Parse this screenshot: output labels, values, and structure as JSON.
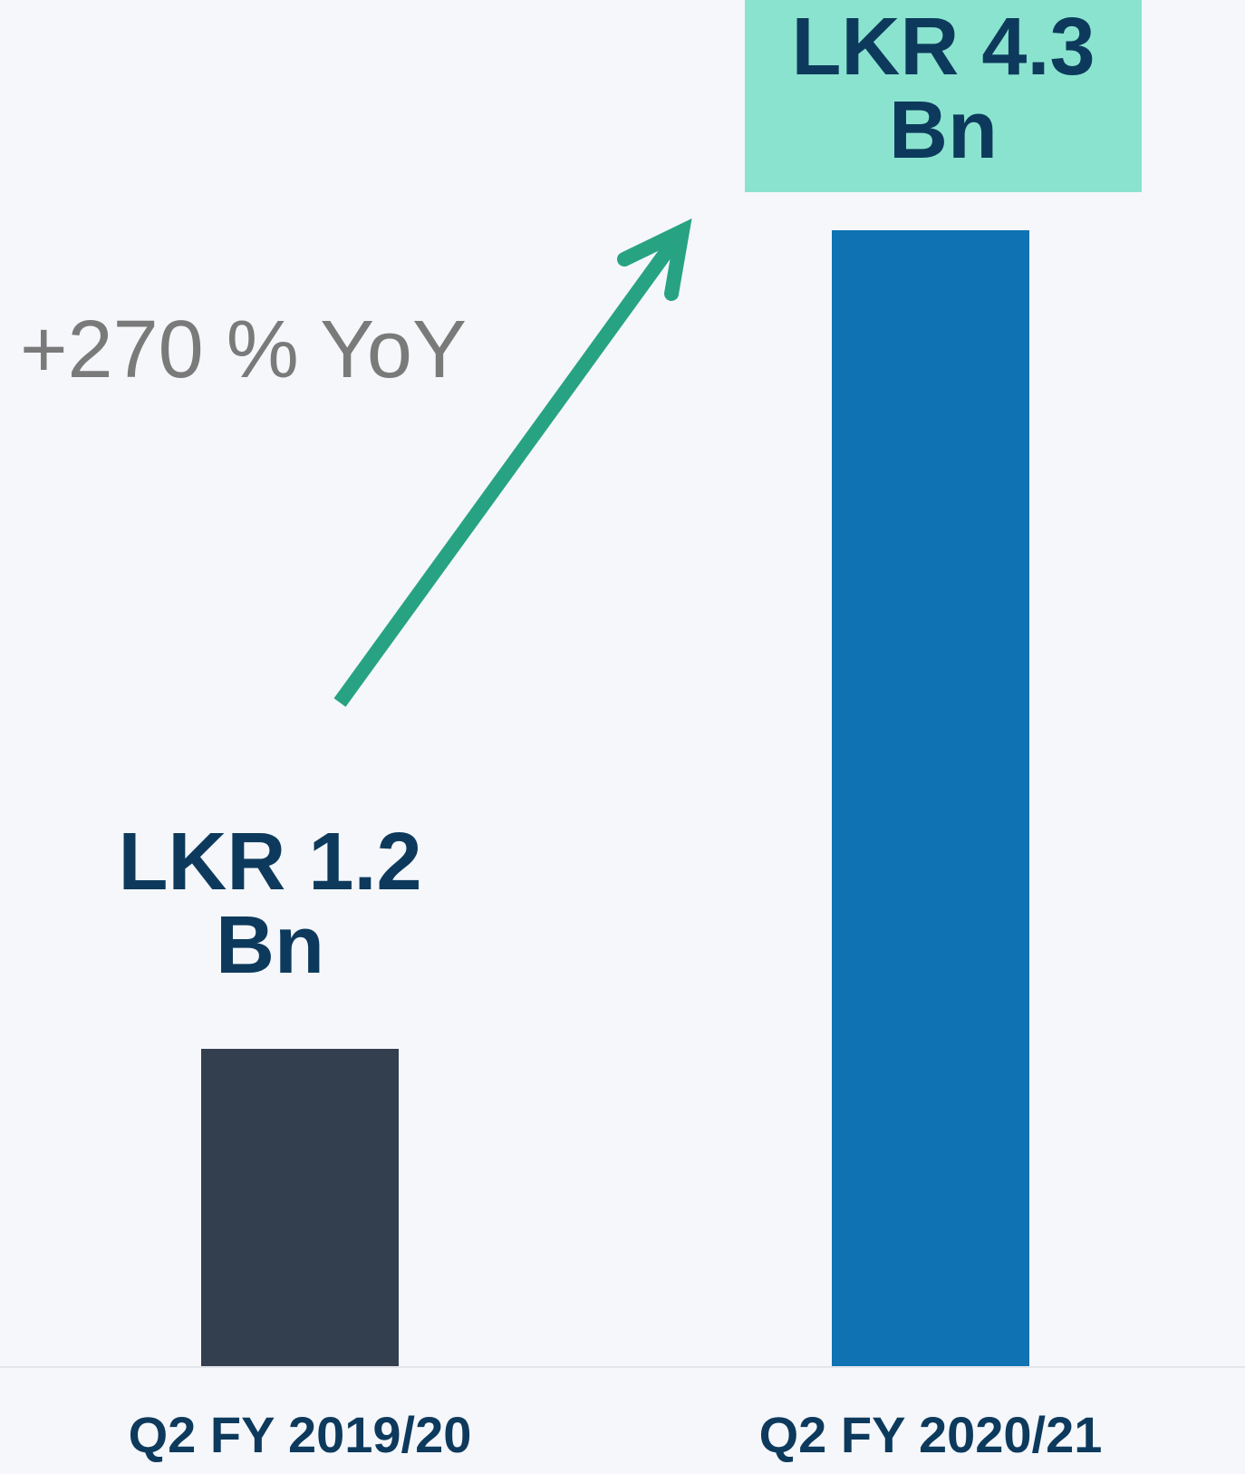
{
  "chart_data": {
    "type": "bar",
    "categories": [
      "Q2 FY 2019/20",
      "Q2 FY 2020/21"
    ],
    "values": [
      1.2,
      4.3
    ],
    "value_labels": [
      "LKR 1.2 Bn",
      "LKR 4.3 Bn"
    ],
    "colors": [
      "#333f4f",
      "#0e72b3"
    ],
    "annotation": "+270 % YoY"
  }
}
